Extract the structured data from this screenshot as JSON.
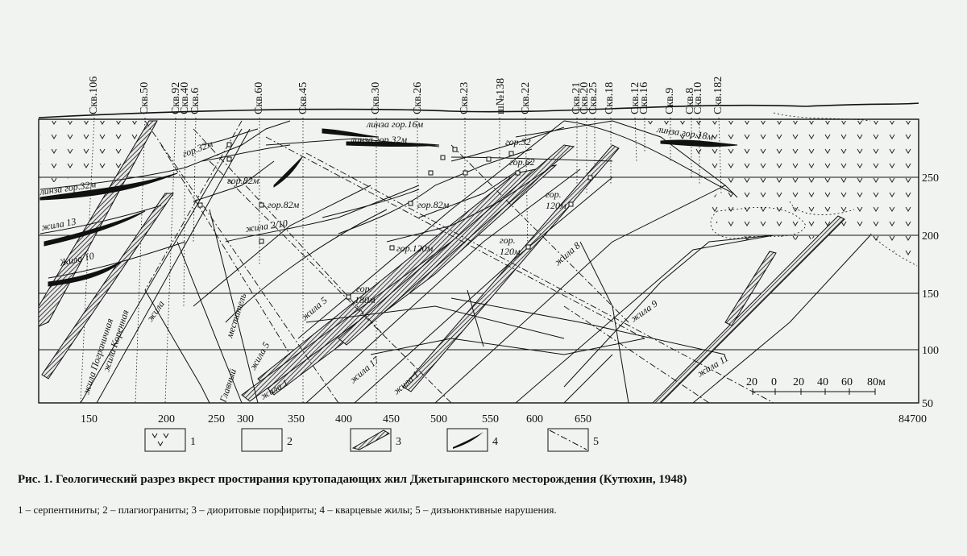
{
  "wells": [
    "Скв.106",
    "Скв.50",
    "Скв.92",
    "Скв.40",
    "Скв.6",
    "Скв.60",
    "Скв.45",
    "Скв.30",
    "Скв.26",
    "Скв.23",
    "ш№138",
    "Скв.22",
    "Скв.21",
    "Скв.20",
    "Скв.25",
    "Скв.18",
    "Скв.12",
    "Скв.16",
    "Скв.9",
    "Скв.8",
    "Скв.10",
    "Скв.182"
  ],
  "depth_ticks": [
    "250",
    "200",
    "150",
    "100",
    "50"
  ],
  "x_ticks": [
    "150",
    "200",
    "250",
    "300",
    "350",
    "400",
    "450",
    "500",
    "550",
    "600",
    "650",
    "84700"
  ],
  "scale": {
    "labels": [
      "20",
      "0",
      "20",
      "40",
      "60",
      "80м"
    ]
  },
  "annotations": {
    "lens_32_left": "линза гор.32м",
    "lens_16": "линза гор.16м",
    "lens_32_top": "линза гор.32м",
    "lens_18": "линза гор.18м",
    "vein_13": "жила 13",
    "vein_10": "Жила 10",
    "vein_210": "жила 2/10",
    "hor32a": "гор.32м",
    "hor82a": "гор.82м",
    "hor82b": "гор.82м",
    "hor82c": "гор.82м",
    "hor32b": "гор.32",
    "hor62": "гор.62",
    "hor120a": "гор.120м",
    "hor120b": "гор.",
    "hor120b2": "120м",
    "hor120c": "гор.",
    "hor120c2": "120м",
    "hor180": "гор.",
    "hor180b": "180м",
    "vein_5a": "жила 5",
    "vein_5b": "жила 5",
    "vein_17": "жила 17",
    "vein_1": "жила 1",
    "vein_8": "жила 8",
    "vein_9": "жила 9",
    "vein_11": "жила 11",
    "vein_1b": "жила 1",
    "vein_gl": "жила",
    "vein_pogr": "жила Пограничная",
    "vein_korenn": "жила Коренная",
    "vein_main": "Главный",
    "vein_mest": "меститель",
    "vein_r5": "жила 5"
  },
  "legend": {
    "items": [
      "1",
      "2",
      "3",
      "4",
      "5"
    ]
  },
  "caption": "Рис. 1. Геологический разрез вкрест простирания крутопадающих жил Джетыгаринского месторождения (Кутюхин, 1948)",
  "legend_text": "1 – серпентиниты; 2 – плагиограниты; 3 – диоритовые порфириты; 4 – кварцевые жилы; 5 – дизъюнктивные нарушения.",
  "colors": {
    "background": "#f1f3f1",
    "ink": "#111111"
  }
}
